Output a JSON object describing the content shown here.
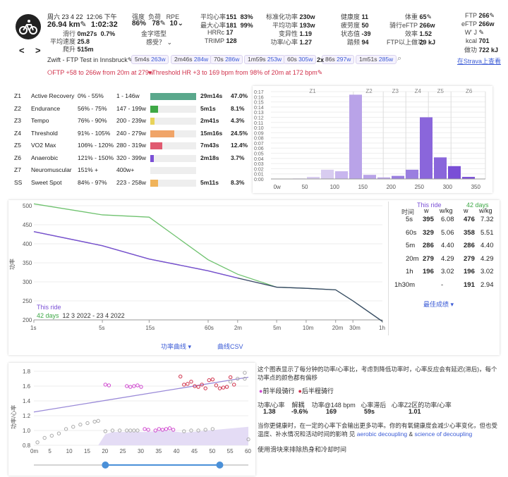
{
  "activity": {
    "date": "周六 23 4 22",
    "time": "12:06 下午",
    "distance": "26.94 km",
    "duration": "1:02:32",
    "glide_label": "滑行",
    "glide_time": "0m27s",
    "glide_pct": "0.7%",
    "avg_speed_label": "平均速度",
    "avg_speed": "25.8",
    "climb_label": "爬升",
    "climb": "515m"
  },
  "stats": {
    "intensity_label": "强度",
    "intensity": "86%",
    "load_label": "负荷",
    "load": "78",
    "rpe_label": "RPE",
    "rpe": "10",
    "pyramid_label": "金字塔型",
    "feel_label": "感受？",
    "avg_hr_label": "平均心率",
    "avg_hr": "151",
    "avg_hr_pct": "83%",
    "max_hr_label": "最大心率",
    "max_hr": "181",
    "max_hr_pct": "99%",
    "hrrc_label": "HRRc",
    "hrrc": "17",
    "trimp_label": "TRIMP",
    "trimp": "128",
    "np_label": "标准化功率",
    "np": "230w",
    "avg_power_label": "平均功率",
    "avg_power": "193w",
    "vi_label": "变异性",
    "vi": "1.19",
    "pwhr_label": "功率/心率",
    "pwhr": "1.27",
    "fitness_label": "健康度",
    "fitness": "11",
    "fatigue_label": "疲劳度",
    "fatigue": "50",
    "form_label": "状态值",
    "form": "-39",
    "cadence_label": "踏频",
    "cadence": "94",
    "weight_label": "体重",
    "weight": "65",
    "eftp_label": "骑行eFTP",
    "eftp": "266w",
    "eff_label": "效率",
    "eff": "1.52",
    "ftpwork_label": "FTP以上做功",
    "ftpwork": "29 kJ",
    "ftp_label": "FTP",
    "ftp": "266",
    "eftp2_label": "eFTP",
    "eftp2": "266w",
    "wj_label": "W' J",
    "kcal_label": "kcal",
    "kcal": "701",
    "work_label": "做功",
    "work": "722 kJ"
  },
  "nav": {
    "prev": "<",
    "next": ">",
    "strava": "在Strava上查看"
  },
  "workout": {
    "name": "Zwift - FTP Test in Innsbruck",
    "x2a": "2x",
    "x2b": "2x"
  },
  "chips": [
    {
      "t": "5m4s",
      "w": "263w"
    },
    {
      "t": "2m46s",
      "w": "284w"
    },
    {
      "t": "70s",
      "w": "286w"
    },
    {
      "t": "1m59s",
      "w": "253w"
    },
    {
      "t": "60s",
      "w": "305w"
    },
    {
      "t": "86s",
      "w": "297w"
    },
    {
      "t": "1m51s",
      "w": "285w"
    }
  ],
  "alerts": {
    "ftp": "FTP +58 to 266w from 20m at 279w",
    "thr": "Threshold HR +3 to 169 bpm from 98% of 20m at 172 bpm"
  },
  "zones": [
    {
      "z": "Z1",
      "name": "Active Recovery",
      "pct": "0% - 55%",
      "range": "1 - 146w",
      "time": "29m14s",
      "share": "47.0%",
      "fill": 0.47,
      "color": "#5aa88c"
    },
    {
      "z": "Z2",
      "name": "Endurance",
      "pct": "56% - 75%",
      "range": "147 - 199w",
      "time": "5m1s",
      "share": "8.1%",
      "fill": 0.081,
      "color": "#3ea846"
    },
    {
      "z": "Z3",
      "name": "Tempo",
      "pct": "76% - 90%",
      "range": "200 - 239w",
      "time": "2m41s",
      "share": "4.3%",
      "fill": 0.043,
      "color": "#e8d35a"
    },
    {
      "z": "Z4",
      "name": "Threshold",
      "pct": "91% - 105%",
      "range": "240 - 279w",
      "time": "15m16s",
      "share": "24.5%",
      "fill": 0.245,
      "color": "#f0a468"
    },
    {
      "z": "Z5",
      "name": "VO2 Max",
      "pct": "106% - 120%",
      "range": "280 - 319w",
      "time": "7m43s",
      "share": "12.4%",
      "fill": 0.124,
      "color": "#e05a70"
    },
    {
      "z": "Z6",
      "name": "Anaerobic",
      "pct": "121% - 150%",
      "range": "320 - 399w",
      "time": "2m18s",
      "share": "3.7%",
      "fill": 0.037,
      "color": "#7a4fd6"
    },
    {
      "z": "Z7",
      "name": "Neuromuscular",
      "pct": "151% +",
      "range": "400w+",
      "time": "",
      "share": "",
      "fill": 0,
      "color": "#444"
    },
    {
      "z": "SS",
      "name": "Sweet Spot",
      "pct": "84% - 97%",
      "range": "223 - 258w",
      "time": "5m11s",
      "share": "8.3%",
      "fill": 0.083,
      "color": "#f0b35a"
    }
  ],
  "histogram": {
    "zone_labels": [
      "Z1",
      "Z2",
      "Z3",
      "Z4",
      "Z5",
      "Z6"
    ],
    "y_ticks": [
      "0:17",
      "0:16",
      "0:15",
      "0:14",
      "0:13",
      "0:12",
      "0:11",
      "0:10",
      "0:09",
      "0:08",
      "0:07",
      "0:06",
      "0:05",
      "0:04",
      "0:03",
      "0:02",
      "0:01",
      "0:00"
    ],
    "x_ticks": [
      "0w",
      "50",
      "100",
      "150",
      "200",
      "250",
      "300",
      "350"
    ]
  },
  "chart_data": [
    {
      "type": "bar",
      "title": "",
      "x": [
        25,
        50,
        75,
        100,
        125,
        150,
        175,
        200,
        225,
        250,
        275,
        300,
        325,
        350
      ],
      "values": [
        0,
        0.1,
        0.4,
        1.8,
        1.5,
        16.4,
        0.8,
        0.3,
        0.6,
        1.8,
        12.0,
        4.2,
        2.5,
        0.4
      ],
      "ylim": [
        0,
        17
      ],
      "xlabel": "",
      "ylabel": ""
    },
    {
      "type": "line",
      "ylabel": "功率",
      "x": [
        "1s",
        "5s",
        "15s",
        "60s",
        "2m",
        "5m",
        "10m",
        "20m",
        "30m",
        "1h"
      ],
      "series": [
        {
          "name": "This ride",
          "values": [
            432,
            395,
            360,
            329,
            310,
            286,
            283,
            279,
            250,
            196
          ]
        },
        {
          "name": "42 days",
          "values": [
            505,
            476,
            470,
            358,
            320,
            286,
            283,
            279,
            250,
            196
          ]
        }
      ],
      "ylim": [
        200,
        500
      ]
    },
    {
      "type": "scatter",
      "ylabel": "功率/心率",
      "xlim": [
        0,
        60
      ],
      "ylim": [
        0.8,
        1.8
      ],
      "series": [
        {
          "name": "前半段骑行",
          "x": [
            20,
            21,
            26,
            27,
            28,
            29,
            30,
            31,
            32,
            34,
            35,
            36,
            37,
            38,
            39
          ],
          "y": [
            1.62,
            1.61,
            1.6,
            1.59,
            1.6,
            1.61,
            1.59,
            1.02,
            1.01,
            1.0,
            1.02,
            1.01,
            1.02,
            1.03,
            1.01
          ]
        },
        {
          "name": "后半程骑行",
          "x": [
            41,
            42,
            43,
            44,
            45,
            46,
            47,
            48,
            49,
            50,
            51,
            52,
            53,
            54,
            55,
            56
          ],
          "y": [
            1.73,
            1.62,
            1.63,
            1.66,
            1.6,
            1.59,
            1.62,
            1.57,
            1.68,
            1.69,
            1.61,
            1.57,
            1.58,
            1.59,
            1.72,
            1.62
          ]
        }
      ]
    }
  ],
  "curve": {
    "y_ticks": [
      "500",
      "450",
      "400",
      "350",
      "300",
      "250",
      "200"
    ],
    "x_ticks": [
      "1s",
      "5s",
      "15s",
      "60s",
      "2m",
      "5m",
      "10m",
      "20m",
      "30m",
      "1h"
    ],
    "legend_this": "This ride",
    "legend_42": "42 days",
    "legend_dates": "12 3 2022 - 23 4 2022",
    "ylabel": "功率",
    "menu": "功率曲线",
    "csv": "曲线CSV"
  },
  "best": {
    "h_time": "时间",
    "h_this": "This ride",
    "h_42": "42 days",
    "h_w": "w",
    "h_wkg": "w/kg",
    "rows": [
      {
        "t": "5s",
        "w": "395",
        "wkg": "6.08",
        "w2": "476",
        "wkg2": "7.32"
      },
      {
        "t": "60s",
        "w": "329",
        "wkg": "5.06",
        "w2": "358",
        "wkg2": "5.51"
      },
      {
        "t": "5m",
        "w": "286",
        "wkg": "4.40",
        "w2": "286",
        "wkg2": "4.40"
      },
      {
        "t": "20m",
        "w": "279",
        "wkg": "4.29",
        "w2": "279",
        "wkg2": "4.29"
      },
      {
        "t": "1h",
        "w": "196",
        "wkg": "3.02",
        "w2": "196",
        "wkg2": "3.02"
      },
      {
        "t": "1h30m",
        "w": "",
        "wkg": "-",
        "w2": "191",
        "wkg2": "2.94"
      }
    ],
    "link": "最佳成绩"
  },
  "decouple": {
    "desc": "这个图表显示了每分钟的功率/心率比，考虑到降低功率时，心率反应会有延迟(滞后)，每个功率点的颜色都有偏移",
    "legend_first": "前半段骑行",
    "legend_second": "后半程骑行",
    "h1": "功率/心率",
    "h2": "解耦",
    "h3": "功率@148 bpm",
    "h4": "心率滞后",
    "h5": "心率Z2区的功率/心率",
    "v1": "1.38",
    "v2": "-9.6%",
    "v3": "169",
    "v4": "59s",
    "v5": "1.01",
    "text1": "当你更健康时，在一定的心率下会输出更多功率。你的有氧健康度会减少心率变化，但也受温度、补水情况和活动时间的影响 见",
    "link1": "aerobic decoupling",
    "amp": "&",
    "link2": "science of decoupling",
    "text2": "使用滑块来排除热身和冷却时间",
    "y_ticks": [
      "1.8",
      "1.6",
      "1.4",
      "1.2",
      "1.0",
      "0.8"
    ],
    "x_ticks": [
      "0m",
      "5",
      "10",
      "15",
      "20",
      "25",
      "30",
      "35",
      "40",
      "45",
      "50",
      "55",
      "60"
    ],
    "ylabel": "功率/心率"
  },
  "colors": {
    "purple": "#7a4fd6",
    "green": "#6fc26f",
    "navy": "#3a4868",
    "link": "#3b5bd6"
  }
}
